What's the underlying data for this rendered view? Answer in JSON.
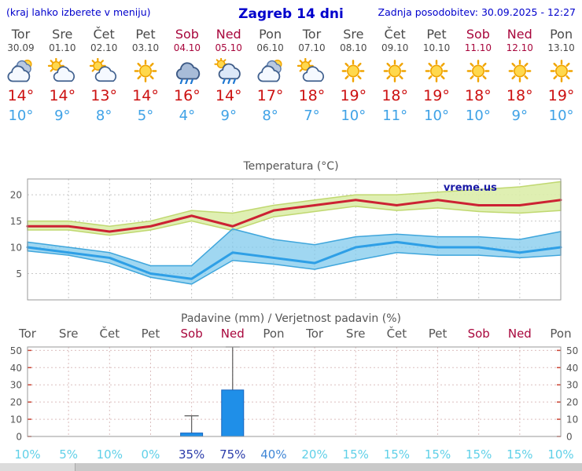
{
  "header": {
    "left_note": "(kraj lahko izberete v meniju)",
    "title": "Zagreb 14 dni",
    "updated": "Zadnja posodobitev: 30.09.2025 - 12:27"
  },
  "colors": {
    "header_blue": "#0000cc",
    "weekend_red": "#a8063c",
    "tmax_red": "#cc1111",
    "tmin_blue": "#3fa2e6"
  },
  "days": [
    {
      "name": "Tor",
      "date": "30.09",
      "weekend": false,
      "icon": "cloudy",
      "tmax": "14°",
      "tmin": "10°"
    },
    {
      "name": "Sre",
      "date": "01.10",
      "weekend": false,
      "icon": "partly-cloudy",
      "tmax": "14°",
      "tmin": "9°"
    },
    {
      "name": "Čet",
      "date": "02.10",
      "weekend": false,
      "icon": "partly-cloudy",
      "tmax": "13°",
      "tmin": "8°"
    },
    {
      "name": "Pet",
      "date": "03.10",
      "weekend": false,
      "icon": "sunny",
      "tmax": "14°",
      "tmin": "5°"
    },
    {
      "name": "Sob",
      "date": "04.10",
      "weekend": true,
      "icon": "rain",
      "tmax": "16°",
      "tmin": "4°"
    },
    {
      "name": "Ned",
      "date": "05.10",
      "weekend": true,
      "icon": "rain-sun",
      "tmax": "14°",
      "tmin": "9°"
    },
    {
      "name": "Pon",
      "date": "06.10",
      "weekend": false,
      "icon": "cloudy",
      "tmax": "17°",
      "tmin": "8°"
    },
    {
      "name": "Tor",
      "date": "07.10",
      "weekend": false,
      "icon": "partly-cloudy",
      "tmax": "18°",
      "tmin": "7°"
    },
    {
      "name": "Sre",
      "date": "08.10",
      "weekend": false,
      "icon": "sunny",
      "tmax": "19°",
      "tmin": "10°"
    },
    {
      "name": "Čet",
      "date": "09.10",
      "weekend": false,
      "icon": "sunny",
      "tmax": "18°",
      "tmin": "11°"
    },
    {
      "name": "Pet",
      "date": "10.10",
      "weekend": false,
      "icon": "sunny",
      "tmax": "19°",
      "tmin": "10°"
    },
    {
      "name": "Sob",
      "date": "11.10",
      "weekend": true,
      "icon": "sunny",
      "tmax": "18°",
      "tmin": "10°"
    },
    {
      "name": "Ned",
      "date": "12.10",
      "weekend": true,
      "icon": "sunny",
      "tmax": "18°",
      "tmin": "9°"
    },
    {
      "name": "Pon",
      "date": "13.10",
      "weekend": false,
      "icon": "sunny",
      "tmax": "19°",
      "tmin": "10°"
    }
  ],
  "chart_data": [
    {
      "type": "line",
      "title": "Temperatura (°C)",
      "watermark": "vreme.us",
      "categories": [
        "Tor 30.09",
        "Sre 01.10",
        "Čet 02.10",
        "Pet 03.10",
        "Sob 04.10",
        "Ned 05.10",
        "Pon 06.10",
        "Tor 07.10",
        "Sre 08.10",
        "Čet 09.10",
        "Pet 10.10",
        "Sob 11.10",
        "Ned 12.10",
        "Pon 13.10"
      ],
      "ylim": [
        0,
        23
      ],
      "yticks": [
        5,
        10,
        15,
        20
      ],
      "grid": true,
      "series": [
        {
          "name": "tmax",
          "color": "#cc2233",
          "values": [
            14,
            14,
            13,
            14,
            16,
            14,
            17,
            18,
            19,
            18,
            19,
            18,
            18,
            19
          ],
          "band_upper": [
            15,
            15,
            14,
            15,
            17,
            16.5,
            18,
            19,
            20,
            20,
            20.5,
            21,
            21.5,
            22.5
          ],
          "band_lower": [
            13.3,
            13.3,
            12.3,
            13.3,
            15,
            13.2,
            15.8,
            16.8,
            17.8,
            17,
            17.5,
            16.8,
            16.5,
            17
          ],
          "band_fill": "#dcedaa",
          "band_edge": "#c0d870",
          "band_opacity": 0.9
        },
        {
          "name": "tmin",
          "color": "#2e9fe6",
          "values": [
            10,
            9,
            8,
            5,
            4,
            9,
            8,
            7,
            10,
            11,
            10,
            10,
            9,
            10
          ],
          "band_upper": [
            11,
            10,
            9,
            6.5,
            6.5,
            13.5,
            11.5,
            10.5,
            12,
            12.5,
            12,
            12,
            11.5,
            13
          ],
          "band_lower": [
            9.3,
            8.5,
            7,
            4.3,
            3,
            7.5,
            6.8,
            5.8,
            7.5,
            9,
            8.5,
            8.5,
            8,
            8.5
          ],
          "band_fill": "#7cc8ec",
          "band_edge": "#3fa6dc",
          "band_opacity": 0.72
        }
      ]
    },
    {
      "type": "bar",
      "title": "Padavine (mm) / Verjetnost padavin (%)",
      "day_labels": [
        {
          "label": "Tor",
          "weekend": false
        },
        {
          "label": "Sre",
          "weekend": false
        },
        {
          "label": "Čet",
          "weekend": false
        },
        {
          "label": "Pet",
          "weekend": false
        },
        {
          "label": "Sob",
          "weekend": true
        },
        {
          "label": "Ned",
          "weekend": true
        },
        {
          "label": "Pon",
          "weekend": false
        },
        {
          "label": "Tor",
          "weekend": false
        },
        {
          "label": "Sre",
          "weekend": false
        },
        {
          "label": "Čet",
          "weekend": false
        },
        {
          "label": "Pet",
          "weekend": false
        },
        {
          "label": "Sob",
          "weekend": true
        },
        {
          "label": "Ned",
          "weekend": true
        },
        {
          "label": "Pon",
          "weekend": false
        }
      ],
      "ylim": [
        0,
        52
      ],
      "yticks": [
        0,
        10,
        20,
        30,
        40,
        50
      ],
      "bar_color": "#1f8fe8",
      "values": [
        0,
        0,
        0,
        0,
        2,
        27,
        0,
        0,
        0,
        0,
        0,
        0,
        0,
        0
      ],
      "whisker_max": [
        0,
        0,
        0,
        0,
        12,
        52,
        0,
        0,
        0,
        0,
        0,
        0,
        0,
        0
      ],
      "probabilities": [
        {
          "text": "10%",
          "level": "low"
        },
        {
          "text": "5%",
          "level": "low"
        },
        {
          "text": "10%",
          "level": "low"
        },
        {
          "text": "0%",
          "level": "low"
        },
        {
          "text": "35%",
          "level": "high"
        },
        {
          "text": "75%",
          "level": "high"
        },
        {
          "text": "40%",
          "level": "mid"
        },
        {
          "text": "20%",
          "level": "low"
        },
        {
          "text": "15%",
          "level": "low"
        },
        {
          "text": "15%",
          "level": "low"
        },
        {
          "text": "15%",
          "level": "low"
        },
        {
          "text": "15%",
          "level": "low"
        },
        {
          "text": "15%",
          "level": "low"
        },
        {
          "text": "10%",
          "level": "low"
        }
      ]
    }
  ]
}
